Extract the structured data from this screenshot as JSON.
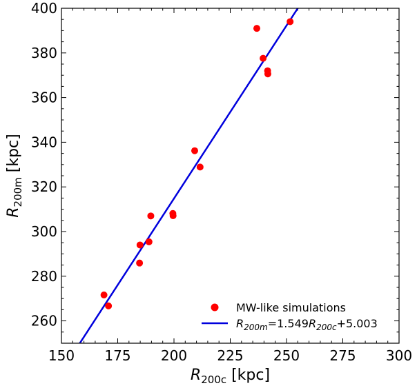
{
  "chart_data": {
    "type": "scatter",
    "xlabel": {
      "base": "R",
      "sub": "200c",
      "unit": " [kpc]"
    },
    "ylabel": {
      "base": "R",
      "sub": "200m",
      "unit": " [kpc]"
    },
    "xlim": [
      150,
      300
    ],
    "ylim": [
      250,
      400
    ],
    "xticks": [
      "150",
      "175",
      "200",
      "225",
      "250",
      "275",
      "300"
    ],
    "yticks": [
      "260",
      "280",
      "300",
      "320",
      "340",
      "360",
      "380",
      "400"
    ],
    "legend_position": "bottom-right",
    "series": [
      {
        "name": "MW-like simulations",
        "kind": "scatter",
        "color": "#ff0000",
        "points": [
          [
            168.9,
            271.6
          ],
          [
            170.9,
            266.7
          ],
          [
            184.9,
            294.0
          ],
          [
            184.7,
            285.9
          ],
          [
            188.9,
            295.4
          ],
          [
            189.7,
            307.0
          ],
          [
            199.5,
            308.1
          ],
          [
            199.6,
            307.1
          ],
          [
            209.2,
            336.2
          ],
          [
            211.6,
            328.9
          ],
          [
            236.8,
            391.0
          ],
          [
            239.6,
            377.6
          ],
          [
            241.6,
            372.0
          ],
          [
            241.7,
            370.6
          ],
          [
            251.6,
            394.0
          ]
        ]
      },
      {
        "name": "R200m=1.549R200c+5.003",
        "kind": "fit-line",
        "color": "#0000dd",
        "slope": 1.549,
        "intercept": 5.003
      }
    ],
    "legend": {
      "scatter_label": "MW-like simulations",
      "fit_label_parts": [
        "R",
        "200m",
        "=1.549",
        "R",
        "200c",
        "+5.003"
      ]
    }
  }
}
